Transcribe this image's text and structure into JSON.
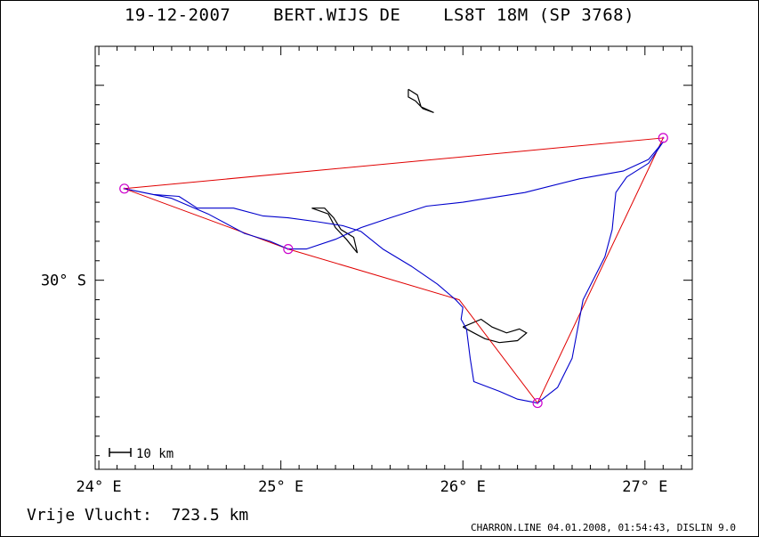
{
  "header": {
    "title": "19-12-2007    BERT.WIJS DE    LS8T 18M (SP 3768)"
  },
  "footer": {
    "distance": "Vrije Vlucht:  723.5 km",
    "credit": "CHARRON.LINE 04.01.2008, 01:54:43, DISLIN 9.0"
  },
  "chart_data": {
    "type": "map-trace",
    "xlim": [
      23.98,
      27.26
    ],
    "ylim": [
      -30.97,
      -28.8
    ],
    "x_ticks": [
      {
        "value": 24,
        "label": "24° E"
      },
      {
        "value": 25,
        "label": "25° E"
      },
      {
        "value": 26,
        "label": "26° E"
      },
      {
        "value": 27,
        "label": "27° E"
      }
    ],
    "y_ticks": [
      {
        "value": -30,
        "label": "30° S"
      }
    ],
    "scale_bar_label": "10 km",
    "colors": {
      "task": "#e00000",
      "track": "#0000cc",
      "river": "#000000",
      "turnpoint": "#cc00cc"
    },
    "turnpoints": [
      {
        "lon": 24.14,
        "lat": -29.53
      },
      {
        "lon": 25.04,
        "lat": -29.84
      },
      {
        "lon": 26.41,
        "lat": -30.63
      },
      {
        "lon": 27.1,
        "lat": -29.27
      }
    ],
    "task_route": [
      {
        "lon": 24.14,
        "lat": -29.53
      },
      {
        "lon": 25.04,
        "lat": -29.84
      },
      {
        "lon": 25.98,
        "lat": -30.1
      },
      {
        "lon": 26.41,
        "lat": -30.63
      },
      {
        "lon": 27.1,
        "lat": -29.27
      },
      {
        "lon": 24.14,
        "lat": -29.53
      }
    ],
    "track": [
      {
        "lon": 24.14,
        "lat": -29.53
      },
      {
        "lon": 24.3,
        "lat": -29.56
      },
      {
        "lon": 24.44,
        "lat": -29.57
      },
      {
        "lon": 24.54,
        "lat": -29.63
      },
      {
        "lon": 24.74,
        "lat": -29.63
      },
      {
        "lon": 24.9,
        "lat": -29.67
      },
      {
        "lon": 25.04,
        "lat": -29.68
      },
      {
        "lon": 25.2,
        "lat": -29.7
      },
      {
        "lon": 25.34,
        "lat": -29.72
      },
      {
        "lon": 25.44,
        "lat": -29.75
      },
      {
        "lon": 25.56,
        "lat": -29.84
      },
      {
        "lon": 25.72,
        "lat": -29.93
      },
      {
        "lon": 25.86,
        "lat": -30.02
      },
      {
        "lon": 25.96,
        "lat": -30.1
      },
      {
        "lon": 26.0,
        "lat": -30.14
      },
      {
        "lon": 25.99,
        "lat": -30.2
      },
      {
        "lon": 26.02,
        "lat": -30.25
      },
      {
        "lon": 26.04,
        "lat": -30.4
      },
      {
        "lon": 26.06,
        "lat": -30.52
      },
      {
        "lon": 26.2,
        "lat": -30.57
      },
      {
        "lon": 26.3,
        "lat": -30.61
      },
      {
        "lon": 26.41,
        "lat": -30.63
      },
      {
        "lon": 26.52,
        "lat": -30.55
      },
      {
        "lon": 26.6,
        "lat": -30.4
      },
      {
        "lon": 26.66,
        "lat": -30.1
      },
      {
        "lon": 26.78,
        "lat": -29.88
      },
      {
        "lon": 26.82,
        "lat": -29.74
      },
      {
        "lon": 26.84,
        "lat": -29.55
      },
      {
        "lon": 26.9,
        "lat": -29.47
      },
      {
        "lon": 27.02,
        "lat": -29.4
      },
      {
        "lon": 27.1,
        "lat": -29.29
      },
      {
        "lon": 27.02,
        "lat": -29.38
      },
      {
        "lon": 26.88,
        "lat": -29.44
      },
      {
        "lon": 26.64,
        "lat": -29.48
      },
      {
        "lon": 26.34,
        "lat": -29.55
      },
      {
        "lon": 26.0,
        "lat": -29.6
      },
      {
        "lon": 25.8,
        "lat": -29.62
      },
      {
        "lon": 25.6,
        "lat": -29.68
      },
      {
        "lon": 25.44,
        "lat": -29.73
      },
      {
        "lon": 25.3,
        "lat": -29.79
      },
      {
        "lon": 25.14,
        "lat": -29.84
      },
      {
        "lon": 25.04,
        "lat": -29.84
      },
      {
        "lon": 24.94,
        "lat": -29.8
      },
      {
        "lon": 24.8,
        "lat": -29.76
      },
      {
        "lon": 24.6,
        "lat": -29.66
      },
      {
        "lon": 24.4,
        "lat": -29.58
      },
      {
        "lon": 24.14,
        "lat": -29.53
      }
    ],
    "rivers": [
      [
        {
          "lon": 25.17,
          "lat": -29.63
        },
        {
          "lon": 25.24,
          "lat": -29.63
        },
        {
          "lon": 25.29,
          "lat": -29.68
        },
        {
          "lon": 25.33,
          "lat": -29.74
        },
        {
          "lon": 25.4,
          "lat": -29.78
        },
        {
          "lon": 25.42,
          "lat": -29.86
        },
        {
          "lon": 25.36,
          "lat": -29.79
        },
        {
          "lon": 25.3,
          "lat": -29.73
        },
        {
          "lon": 25.26,
          "lat": -29.66
        },
        {
          "lon": 25.17,
          "lat": -29.63
        }
      ],
      [
        {
          "lon": 25.7,
          "lat": -29.02
        },
        {
          "lon": 25.75,
          "lat": -29.05
        },
        {
          "lon": 25.77,
          "lat": -29.11
        },
        {
          "lon": 25.84,
          "lat": -29.14
        },
        {
          "lon": 25.78,
          "lat": -29.12
        },
        {
          "lon": 25.74,
          "lat": -29.08
        },
        {
          "lon": 25.7,
          "lat": -29.06
        },
        {
          "lon": 25.7,
          "lat": -29.02
        }
      ],
      [
        {
          "lon": 26.0,
          "lat": -30.24
        },
        {
          "lon": 26.1,
          "lat": -30.2
        },
        {
          "lon": 26.16,
          "lat": -30.24
        },
        {
          "lon": 26.24,
          "lat": -30.27
        },
        {
          "lon": 26.31,
          "lat": -30.25
        },
        {
          "lon": 26.35,
          "lat": -30.27
        },
        {
          "lon": 26.3,
          "lat": -30.31
        },
        {
          "lon": 26.2,
          "lat": -30.32
        },
        {
          "lon": 26.12,
          "lat": -30.3
        },
        {
          "lon": 26.06,
          "lat": -30.27
        },
        {
          "lon": 26.0,
          "lat": -30.24
        }
      ]
    ]
  }
}
